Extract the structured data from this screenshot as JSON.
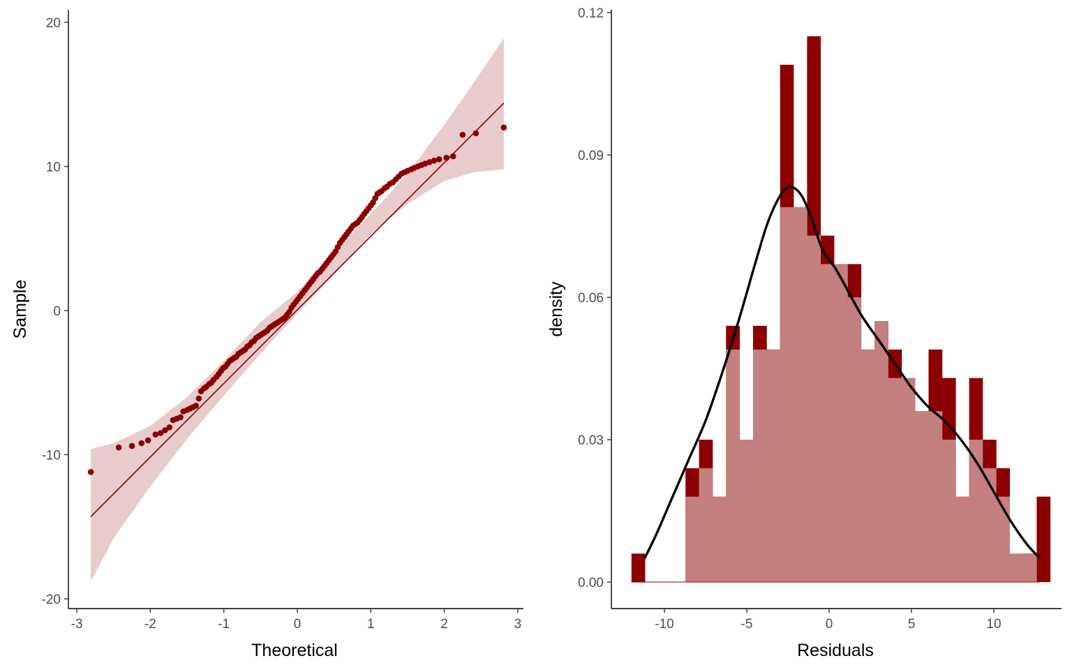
{
  "chart_data": [
    {
      "type": "scatter",
      "subtype": "qq-plot",
      "title": "",
      "xlabel": "Theoretical",
      "ylabel": "Sample",
      "xlim": [
        -3,
        3
      ],
      "ylim": [
        -20,
        20
      ],
      "x_ticks": [
        "-3",
        "-2",
        "-1",
        "0",
        "1",
        "2",
        "3"
      ],
      "y_ticks": [
        "20",
        "10",
        "0",
        "-10",
        "-20"
      ],
      "reference_line": {
        "x": [
          -2.81,
          2.81
        ],
        "y": [
          -14.3,
          14.4
        ]
      },
      "confidence_band": {
        "x": [
          -2.81,
          -2.5,
          -2.0,
          -1.5,
          -1.0,
          -0.5,
          0.0,
          0.5,
          1.0,
          1.5,
          2.0,
          2.4,
          2.81
        ],
        "lower": [
          -18.8,
          -15.8,
          -12.2,
          -8.9,
          -5.9,
          -3.0,
          -0.2,
          2.5,
          5.3,
          7.4,
          9.0,
          9.6,
          9.8
        ],
        "upper": [
          -9.6,
          -9.2,
          -8.0,
          -6.0,
          -3.5,
          -0.8,
          1.3,
          4.1,
          6.7,
          9.5,
          12.9,
          15.8,
          18.9
        ]
      },
      "points": {
        "x": [
          -2.81,
          -2.43,
          -2.25,
          -2.12,
          -2.03,
          -1.93,
          -1.86,
          -1.8,
          -1.74,
          -1.69,
          -1.64,
          -1.59,
          -1.55,
          -1.5,
          -1.46,
          -1.42,
          -1.38,
          -1.34,
          -1.31,
          -1.27,
          -1.24,
          -1.2,
          -1.17,
          -1.14,
          -1.1,
          -1.07,
          -1.04,
          -1.01,
          -0.98,
          -0.95,
          -0.92,
          -0.89,
          -0.86,
          -0.83,
          -0.8,
          -0.77,
          -0.74,
          -0.71,
          -0.68,
          -0.65,
          -0.62,
          -0.59,
          -0.56,
          -0.53,
          -0.5,
          -0.47,
          -0.44,
          -0.41,
          -0.38,
          -0.35,
          -0.32,
          -0.29,
          -0.26,
          -0.23,
          -0.2,
          -0.17,
          -0.14,
          -0.11,
          -0.08,
          -0.05,
          -0.02,
          0.01,
          0.04,
          0.07,
          0.1,
          0.13,
          0.16,
          0.19,
          0.22,
          0.25,
          0.28,
          0.31,
          0.34,
          0.37,
          0.4,
          0.43,
          0.46,
          0.49,
          0.52,
          0.55,
          0.58,
          0.61,
          0.64,
          0.67,
          0.7,
          0.73,
          0.76,
          0.79,
          0.82,
          0.85,
          0.88,
          0.91,
          0.94,
          0.97,
          1.0,
          1.03,
          1.06,
          1.09,
          1.12,
          1.15,
          1.19,
          1.22,
          1.26,
          1.3,
          1.34,
          1.38,
          1.42,
          1.46,
          1.5,
          1.55,
          1.59,
          1.64,
          1.69,
          1.74,
          1.8,
          1.86,
          1.93,
          2.03,
          2.12,
          2.25,
          2.43,
          2.81
        ],
        "y": [
          -11.2,
          -9.5,
          -9.4,
          -9.2,
          -9.0,
          -8.6,
          -8.5,
          -8.3,
          -8.1,
          -7.6,
          -7.5,
          -7.4,
          -7.0,
          -6.9,
          -6.8,
          -6.7,
          -6.6,
          -6.1,
          -5.6,
          -5.4,
          -5.3,
          -5.1,
          -5.0,
          -4.8,
          -4.6,
          -4.4,
          -4.2,
          -4.0,
          -3.9,
          -3.7,
          -3.5,
          -3.4,
          -3.3,
          -3.2,
          -3.0,
          -2.9,
          -2.8,
          -2.7,
          -2.5,
          -2.4,
          -2.2,
          -2.1,
          -1.9,
          -1.8,
          -1.7,
          -1.6,
          -1.5,
          -1.4,
          -1.2,
          -1.1,
          -1.0,
          -0.9,
          -0.8,
          -0.7,
          -0.6,
          -0.5,
          -0.3,
          -0.1,
          0.2,
          0.4,
          0.6,
          0.8,
          1.0,
          1.2,
          1.4,
          1.6,
          1.8,
          2.0,
          2.2,
          2.4,
          2.6,
          2.7,
          2.9,
          3.1,
          3.3,
          3.5,
          3.7,
          3.9,
          4.1,
          4.4,
          4.7,
          4.9,
          5.1,
          5.3,
          5.5,
          5.7,
          5.9,
          6.0,
          6.1,
          6.3,
          6.5,
          6.7,
          6.9,
          7.1,
          7.3,
          7.5,
          7.8,
          8.1,
          8.2,
          8.3,
          8.5,
          8.6,
          8.8,
          8.9,
          9.1,
          9.3,
          9.5,
          9.6,
          9.7,
          9.8,
          9.9,
          10.0,
          10.1,
          10.2,
          10.3,
          10.4,
          10.5,
          10.6,
          10.7,
          12.2,
          12.3,
          12.7
        ]
      },
      "colors": {
        "points": "#8B0000",
        "line": "#8B0000",
        "band": "#E8CBCB"
      }
    },
    {
      "type": "bar",
      "subtype": "histogram-with-density",
      "title": "",
      "xlabel": "Residuals",
      "ylabel": "density",
      "xlim": [
        -12.8,
        13.8
      ],
      "ylim": [
        0,
        0.12
      ],
      "x_ticks": [
        "-10",
        "-5",
        "0",
        "5",
        "10"
      ],
      "y_ticks": [
        "0.12",
        "0.09",
        "0.06",
        "0.03",
        "0.00"
      ],
      "series": [
        {
          "kind": "histogram",
          "binwidth": 0.82,
          "start": -12.0,
          "values": [
            0.006,
            0.0,
            0.0,
            0.0,
            0.024,
            0.03,
            0.018,
            0.054,
            0.03,
            0.054,
            0.049,
            0.109,
            0.079,
            0.115,
            0.073,
            0.067,
            0.067,
            0.049,
            0.055,
            0.049,
            0.043,
            0.036,
            0.049,
            0.043,
            0.018,
            0.043,
            0.03,
            0.024,
            0.0,
            0.006,
            0.018
          ]
        },
        {
          "kind": "histogram",
          "binwidth": 0.82,
          "start": -12.0,
          "values": [
            0.0,
            0.0,
            0.0,
            0.0,
            0.018,
            0.024,
            0.018,
            0.049,
            0.03,
            0.049,
            0.049,
            0.079,
            0.079,
            0.073,
            0.067,
            0.067,
            0.06,
            0.049,
            0.055,
            0.043,
            0.043,
            0.036,
            0.036,
            0.03,
            0.018,
            0.03,
            0.024,
            0.018,
            0.006,
            0.006,
            0.0
          ]
        },
        {
          "kind": "density",
          "x": [
            -11.2,
            -10.5,
            -9.5,
            -8.5,
            -7.5,
            -6.5,
            -5.5,
            -4.5,
            -3.8,
            -3.2,
            -2.6,
            -2.1,
            -1.6,
            -1.0,
            -0.4,
            0.4,
            1.2,
            2.0,
            3.0,
            4.0,
            5.0,
            6.0,
            7.0,
            8.0,
            9.0,
            10.0,
            11.0,
            12.0,
            12.8
          ],
          "y": [
            0.005,
            0.01,
            0.018,
            0.026,
            0.034,
            0.044,
            0.055,
            0.067,
            0.075,
            0.08,
            0.083,
            0.083,
            0.081,
            0.076,
            0.07,
            0.066,
            0.061,
            0.056,
            0.051,
            0.046,
            0.041,
            0.037,
            0.034,
            0.03,
            0.025,
            0.019,
            0.013,
            0.008,
            0.005
          ]
        }
      ],
      "colors": {
        "bars_dark": "#8B0000",
        "bars_light": "#C47F7F",
        "density_line": "#000000"
      }
    }
  ]
}
